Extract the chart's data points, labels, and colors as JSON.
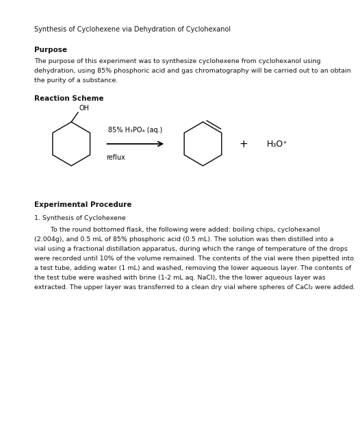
{
  "title": "Synthesis of Cyclohexene via Dehydration of Cyclohexanol",
  "purpose_heading": "Purpose",
  "purpose_text_line1": "The purpose of this experiment was to synthesize cyclohexene from cyclohexanol using",
  "purpose_text_line2": "dehydration, using 85% phosphoric acid and gas chromatography will be carried out to an obtain",
  "purpose_text_line3": "the purity of a substance.",
  "reaction_heading": "Reaction Scheme",
  "reagent_line1": "85% H₃PO₄ (aq.)",
  "reagent_line2": "reflux",
  "product_label": "H₃O⁺",
  "plus_sign": "+",
  "exp_heading": "Experimental Procedure",
  "exp_sub": "1. Synthesis of Cyclohexene",
  "exp_para_lines": [
    "        To the round bottomed flask, the following were added: boiling chips, cyclohexanol",
    "(2.004g), and 0.5 mL of 85% phosphoric acid (0.5 mL). The solution was then distilled into a",
    "vial using a fractional distillation apparatus, during which the range of temperature of the drops",
    "were recorded until 10% of the volume remained. The contents of the vial were then pipetted into",
    "a test tube, adding water (1 mL) and washed, removing the lower aqueous layer. The contents of",
    "the test tube were washed with brine (1-2 mL aq. NaCl), the the lower aqueous layer was",
    "extracted. The upper layer was transferred to a clean dry vial where spheres of CaCl₂ were added."
  ],
  "bg_color": "#ffffff",
  "text_color": "#111111",
  "font_size_title": 7.0,
  "font_size_heading": 7.5,
  "font_size_body": 6.8
}
